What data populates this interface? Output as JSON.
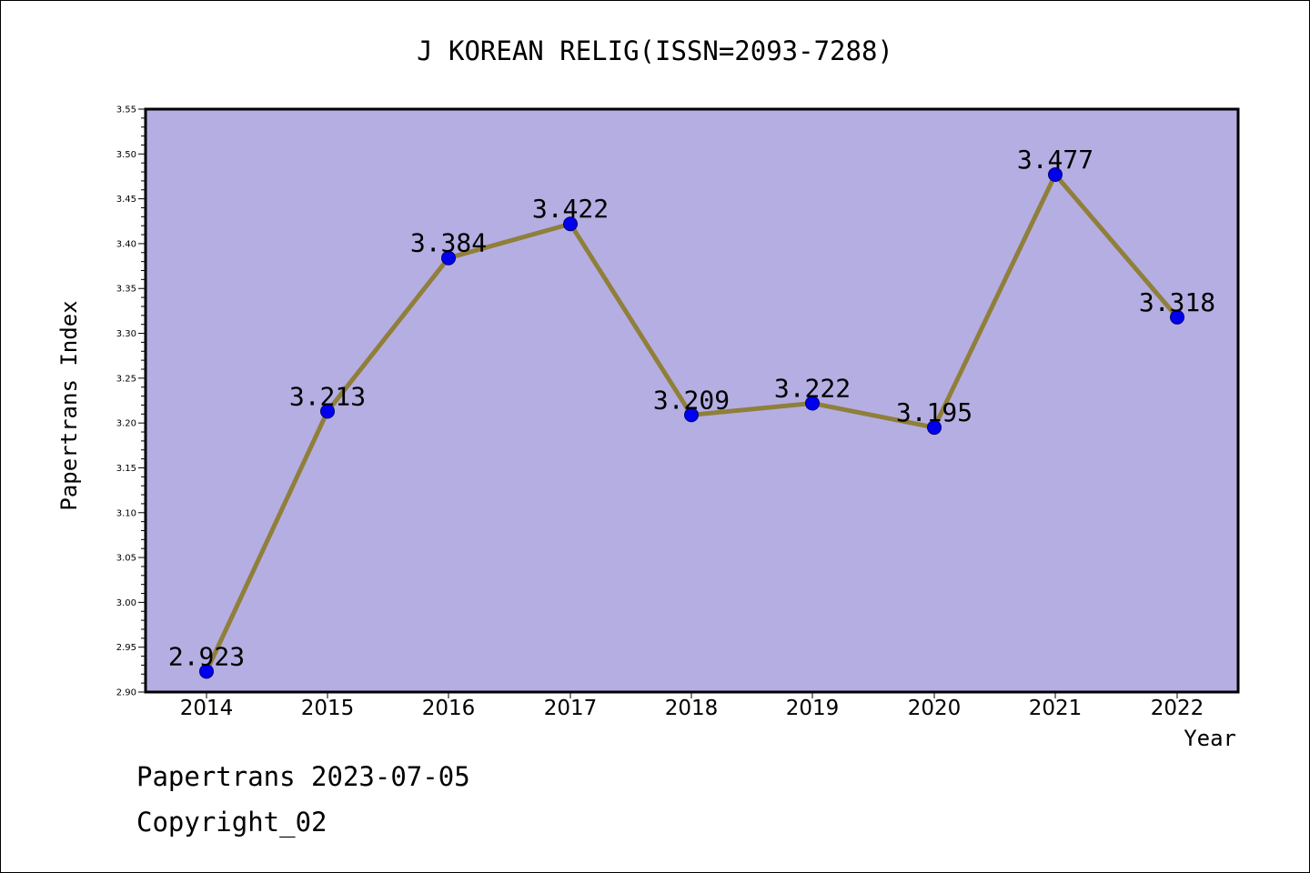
{
  "chart_data": {
    "type": "line",
    "title": "J KOREAN RELIG(ISSN=2093-7288)",
    "xlabel": "Year",
    "ylabel": "Papertrans Index",
    "categories": [
      "2014",
      "2015",
      "2016",
      "2017",
      "2018",
      "2019",
      "2020",
      "2021",
      "2022"
    ],
    "series": [
      {
        "values": [
          2.923,
          3.213,
          3.384,
          3.422,
          3.209,
          3.222,
          3.195,
          3.477,
          3.318
        ],
        "labels": [
          "2.923",
          "3.213",
          "3.384",
          "3.422",
          "3.209",
          "3.222",
          "3.195",
          "3.477",
          "3.318"
        ]
      }
    ],
    "ylim": [
      2.9,
      3.55
    ],
    "yticks": [
      "2.90",
      "2.95",
      "3.00",
      "3.05",
      "3.10",
      "3.15",
      "3.20",
      "3.25",
      "3.30",
      "3.35",
      "3.40",
      "3.45",
      "3.50",
      "3.55"
    ],
    "grid": false,
    "legend": "none"
  },
  "footer": {
    "line1": "Papertrans 2023-07-05",
    "line2": "Copyright_02"
  },
  "colors": {
    "plot_background": "#b5aee3",
    "line": "#8f7f3a",
    "marker": "#0000ee",
    "marker_edge": "#00007a",
    "axis": "#000000",
    "page_border": "#000000"
  }
}
